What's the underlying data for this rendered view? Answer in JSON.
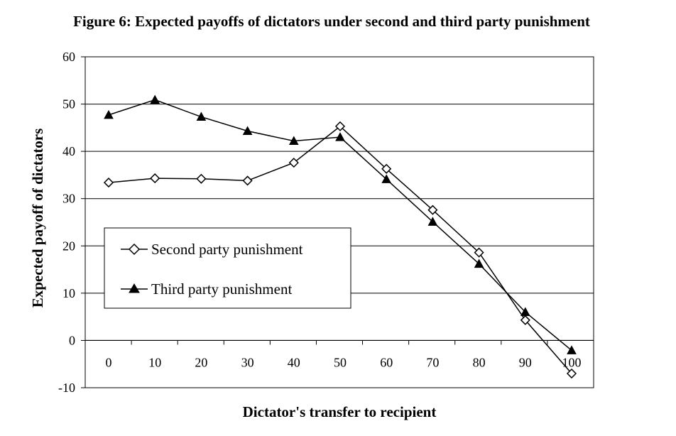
{
  "chart_data": {
    "type": "line",
    "title": "Figure 6: Expected payoffs of dictators under second and third party punishment",
    "xlabel": "Dictator's transfer to recipient",
    "ylabel": "Expected payoff of dictators",
    "categories": [
      "0",
      "10",
      "20",
      "30",
      "40",
      "50",
      "60",
      "70",
      "80",
      "90",
      "100"
    ],
    "ylim": [
      -10,
      60
    ],
    "yticks": [
      "-10",
      "0",
      "10",
      "20",
      "30",
      "40",
      "50",
      "60"
    ],
    "grid": true,
    "legend_position": "lower-left",
    "series": [
      {
        "name": "Second party punishment",
        "marker": "diamond-open",
        "color": "#000000",
        "values": [
          33.4,
          34.3,
          34.2,
          33.8,
          37.6,
          45.3,
          36.3,
          27.6,
          18.6,
          4.3,
          -7.0
        ]
      },
      {
        "name": "Third party punishment",
        "marker": "triangle-filled",
        "color": "#000000",
        "values": [
          47.7,
          50.9,
          47.3,
          44.3,
          42.2,
          43.0,
          34.1,
          25.1,
          16.2,
          6.0,
          -2.1
        ]
      }
    ]
  }
}
